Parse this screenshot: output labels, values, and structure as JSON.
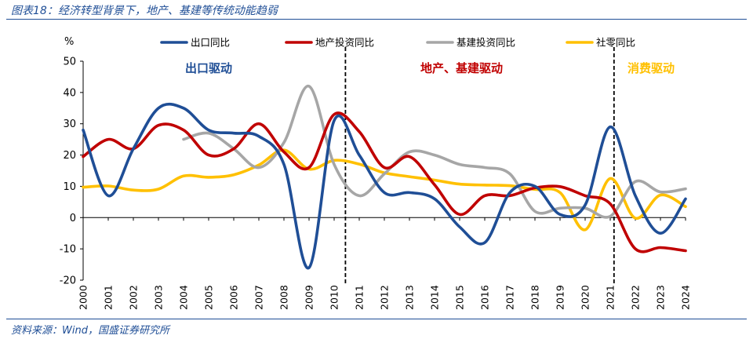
{
  "figure": {
    "title": "图表18：经济转型背景下，地产、基建等传统动能趋弱",
    "source": "资料来源：Wind，国盛证券研究所"
  },
  "chart_data": {
    "type": "line",
    "ylabel": "%",
    "ylim": [
      -20,
      50
    ],
    "yticks": [
      -20,
      -10,
      0,
      10,
      20,
      30,
      40,
      50
    ],
    "x": [
      "2000",
      "2001",
      "2002",
      "2003",
      "2004",
      "2005",
      "2006",
      "2007",
      "2008",
      "2009",
      "2010",
      "2011",
      "2012",
      "2013",
      "2014",
      "2015",
      "2016",
      "2017",
      "2018",
      "2019",
      "2020",
      "2021",
      "2022",
      "2023",
      "2024"
    ],
    "legend_position": "top",
    "series": [
      {
        "name": "出口同比",
        "color": "#1f4e96",
        "values": [
          28,
          7,
          22,
          35,
          35,
          28,
          27,
          26,
          17,
          -16,
          31,
          20,
          8,
          8,
          6,
          -3,
          -8,
          8,
          10,
          1,
          4,
          29,
          7,
          -5,
          6
        ]
      },
      {
        "name": "地产投资同比",
        "color": "#c00000",
        "values": [
          19.5,
          25,
          22,
          29.5,
          28,
          20,
          22,
          30,
          21,
          16,
          33,
          27.5,
          16,
          19.5,
          10.5,
          1,
          7,
          7,
          9.5,
          9.9,
          7,
          4.4,
          -10,
          -9.6,
          -10.6
        ]
      },
      {
        "name": "基建投资同比",
        "color": "#a6a6a6",
        "values": [
          null,
          null,
          null,
          null,
          25,
          27,
          22,
          16,
          24,
          42,
          17,
          7,
          14,
          21,
          20,
          17,
          16,
          14,
          2,
          3,
          3,
          0.4,
          11.5,
          8.2,
          9.2
        ]
      },
      {
        "name": "社零同比",
        "color": "#ffc000",
        "values": [
          9.7,
          10.1,
          8.8,
          9.1,
          13.3,
          12.9,
          13.7,
          16.8,
          21.6,
          15.5,
          18.3,
          17.1,
          14.3,
          13.1,
          12.0,
          10.7,
          10.4,
          10.2,
          9.0,
          8.0,
          -3.9,
          12.5,
          -0.2,
          7.2,
          3.5
        ]
      }
    ],
    "dividers": [
      "2010/2011",
      "2021"
    ],
    "annotations": [
      {
        "text": "出口驱动",
        "color": "#1f4e96"
      },
      {
        "text": "地产、基建驱动",
        "color": "#c00000"
      },
      {
        "text": "消费驱动",
        "color": "#ffc000"
      }
    ]
  }
}
